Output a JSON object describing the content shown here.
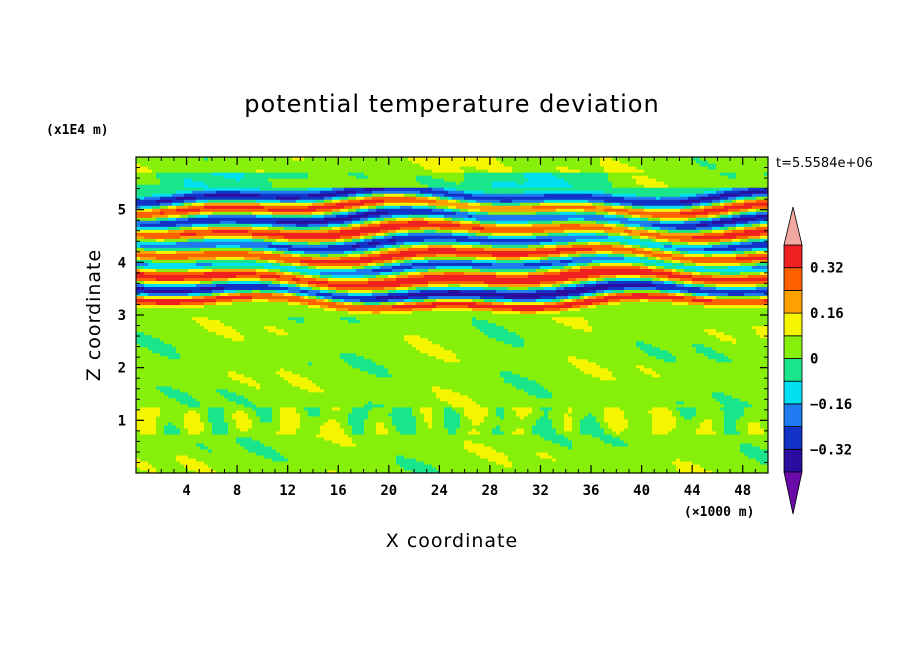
{
  "chart_data": {
    "type": "heatmap",
    "title": "potential temperature deviation",
    "xlabel": "X coordinate",
    "ylabel": "Z coordinate",
    "x_scale_label": "(×1000 m)",
    "y_scale_label": "(x1E4 m)",
    "time_label": "t=5.5584e+06",
    "xlim": [
      0,
      50
    ],
    "ylim": [
      0,
      6
    ],
    "xticks": [
      "4",
      "8",
      "12",
      "16",
      "20",
      "24",
      "28",
      "32",
      "36",
      "40",
      "44",
      "48"
    ],
    "yticks": [
      "1",
      "2",
      "3",
      "4",
      "5"
    ],
    "colorbar": {
      "levels": [
        -0.4,
        -0.32,
        -0.24,
        -0.16,
        -0.08,
        0,
        0.08,
        0.16,
        0.24,
        0.32,
        0.4
      ],
      "colors": [
        "#6a0aa8",
        "#2b0ea0",
        "#1232c8",
        "#1e7cf0",
        "#00e0f0",
        "#19e68a",
        "#86f00a",
        "#f5f500",
        "#ffa000",
        "#ff6000",
        "#ee2020",
        "#f0a8a0"
      ],
      "tick_labels": [
        "0.32",
        "0.16",
        "0",
        "−0.16",
        "−0.32"
      ],
      "tick_values": [
        0.32,
        0.16,
        0,
        -0.16,
        -0.32
      ]
    },
    "field": {
      "description_of_bands": "layered horizontal bands of alternating positive and negative deviation between z≈3 and z≈5.3 (×1E4 m); weak near-zero field below z≈3 and above z≈5.5",
      "bands": [
        {
          "z_center": 5.25,
          "z_width": 0.12,
          "value": -0.36
        },
        {
          "z_center": 5.05,
          "z_width": 0.14,
          "value": 0.38
        },
        {
          "z_center": 4.85,
          "z_width": 0.14,
          "value": -0.38
        },
        {
          "z_center": 4.6,
          "z_width": 0.16,
          "value": 0.4
        },
        {
          "z_center": 4.4,
          "z_width": 0.14,
          "value": -0.36
        },
        {
          "z_center": 4.15,
          "z_width": 0.14,
          "value": 0.38
        },
        {
          "z_center": 3.95,
          "z_width": 0.12,
          "value": -0.3
        },
        {
          "z_center": 3.7,
          "z_width": 0.16,
          "value": 0.4
        },
        {
          "z_center": 3.45,
          "z_width": 0.14,
          "value": -0.38
        },
        {
          "z_center": 3.25,
          "z_width": 0.1,
          "value": 0.4
        }
      ],
      "background_value_low": 0.04,
      "background_value_high": 0.06
    }
  }
}
